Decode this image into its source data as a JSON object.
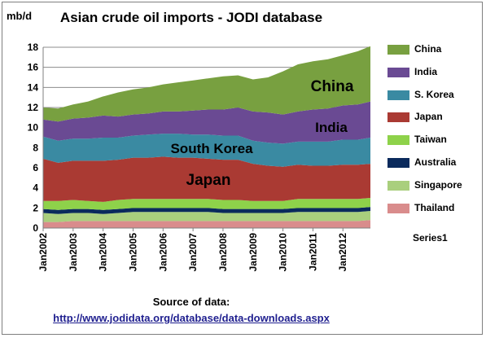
{
  "chart_data": {
    "type": "area",
    "stacked": true,
    "title": "Asian crude oil imports - JODI database",
    "ylabel": "mb/d",
    "ylim": [
      0,
      18
    ],
    "yticks": [
      "0",
      "2",
      "4",
      "6",
      "8",
      "10",
      "12",
      "14",
      "16",
      "18"
    ],
    "xticks": [
      "Jan2002",
      "Jan2003",
      "Jan2004",
      "Jan2005",
      "Jan2006",
      "Jan2007",
      "Jan2008",
      "Jan2009",
      "Jan2010",
      "Jan2011",
      "Jan2012"
    ],
    "x": [
      "2002-01",
      "2002-07",
      "2003-01",
      "2003-07",
      "2004-01",
      "2004-07",
      "2005-01",
      "2005-07",
      "2006-01",
      "2006-07",
      "2007-01",
      "2007-07",
      "2008-01",
      "2008-07",
      "2009-01",
      "2009-07",
      "2010-01",
      "2010-07",
      "2011-01",
      "2011-07",
      "2012-01",
      "2012-07",
      "2012-12"
    ],
    "gridlines": true,
    "legend_position": "right",
    "series": [
      {
        "name": "Thailand",
        "color": "#d98c8c",
        "values": [
          0.6,
          0.6,
          0.7,
          0.7,
          0.7,
          0.7,
          0.7,
          0.7,
          0.7,
          0.7,
          0.7,
          0.7,
          0.7,
          0.7,
          0.7,
          0.7,
          0.7,
          0.7,
          0.7,
          0.7,
          0.7,
          0.7,
          0.8
        ]
      },
      {
        "name": "Singapore",
        "color": "#a9cf7d",
        "values": [
          0.9,
          0.8,
          0.8,
          0.8,
          0.7,
          0.8,
          0.9,
          0.9,
          0.9,
          0.9,
          0.9,
          0.9,
          0.8,
          0.8,
          0.8,
          0.8,
          0.8,
          0.9,
          0.9,
          0.9,
          0.9,
          0.9,
          0.9
        ]
      },
      {
        "name": "Australia",
        "color": "#0a2a5c",
        "values": [
          0.4,
          0.4,
          0.4,
          0.4,
          0.4,
          0.4,
          0.4,
          0.4,
          0.4,
          0.4,
          0.4,
          0.4,
          0.4,
          0.4,
          0.4,
          0.4,
          0.4,
          0.4,
          0.4,
          0.4,
          0.4,
          0.4,
          0.4
        ]
      },
      {
        "name": "Taiwan",
        "color": "#8ed24a",
        "values": [
          0.8,
          0.9,
          0.9,
          0.8,
          0.8,
          0.9,
          0.9,
          0.9,
          0.9,
          0.9,
          0.9,
          0.9,
          0.9,
          0.9,
          0.8,
          0.8,
          0.8,
          0.9,
          0.9,
          0.9,
          0.9,
          0.9,
          0.9
        ]
      },
      {
        "name": "Japan",
        "color": "#aa3a33",
        "values": [
          4.2,
          3.8,
          3.9,
          4.0,
          4.1,
          4.0,
          4.1,
          4.1,
          4.2,
          4.1,
          4.1,
          4.0,
          4.0,
          4.0,
          3.7,
          3.5,
          3.4,
          3.4,
          3.3,
          3.3,
          3.4,
          3.4,
          3.4
        ]
      },
      {
        "name": "S. Korea",
        "color": "#3a8aa2",
        "values": [
          2.2,
          2.2,
          2.2,
          2.2,
          2.3,
          2.2,
          2.2,
          2.3,
          2.3,
          2.4,
          2.3,
          2.4,
          2.4,
          2.4,
          2.3,
          2.3,
          2.3,
          2.3,
          2.4,
          2.4,
          2.5,
          2.5,
          2.6
        ]
      },
      {
        "name": "India",
        "color": "#6a4a93",
        "values": [
          1.7,
          1.9,
          2.0,
          2.1,
          2.2,
          2.1,
          2.1,
          2.1,
          2.2,
          2.2,
          2.4,
          2.5,
          2.6,
          2.8,
          2.9,
          3.0,
          2.9,
          3.0,
          3.2,
          3.3,
          3.4,
          3.5,
          3.6
        ]
      },
      {
        "name": "China",
        "color": "#78a040",
        "values": [
          1.2,
          1.3,
          1.4,
          1.6,
          1.9,
          2.4,
          2.5,
          2.6,
          2.7,
          2.9,
          3.0,
          3.1,
          3.3,
          3.2,
          3.2,
          3.5,
          4.3,
          4.7,
          4.8,
          4.9,
          5.0,
          5.3,
          5.5
        ]
      }
    ],
    "annotations": [
      "China",
      "India",
      "South Korea",
      "Japan"
    ],
    "extra_legend_entry": "Series1"
  },
  "source": {
    "title": "Source of data:",
    "url": "http://www.jodidata.org/database/data-downloads.aspx"
  }
}
